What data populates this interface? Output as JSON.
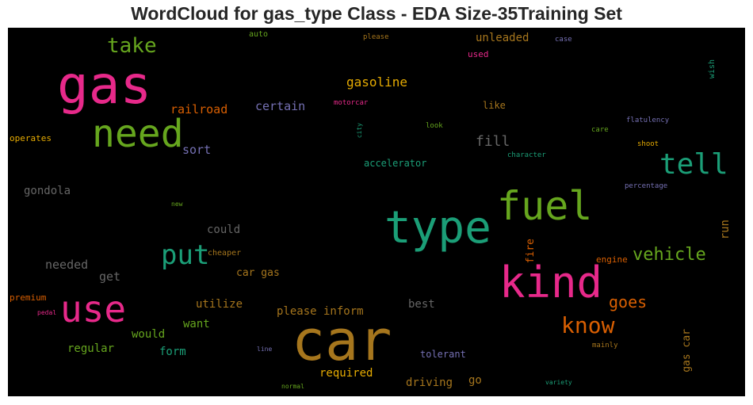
{
  "chart_data": {
    "type": "wordcloud",
    "title": "WordCloud for gas_type Class - EDA Size-35Training Set",
    "background": "#000000",
    "words": [
      {
        "text": "car",
        "size": 70,
        "color": "#a6761d"
      },
      {
        "text": "gas",
        "size": 66,
        "color": "#e7298a"
      },
      {
        "text": "type",
        "size": 56,
        "color": "#1b9e77"
      },
      {
        "text": "kind",
        "size": 54,
        "color": "#e7298a"
      },
      {
        "text": "fuel",
        "size": 50,
        "color": "#66a61e"
      },
      {
        "text": "need",
        "size": 48,
        "color": "#66a61e"
      },
      {
        "text": "use",
        "size": 46,
        "color": "#e7298a"
      },
      {
        "text": "tell",
        "size": 36,
        "color": "#1b9e77"
      },
      {
        "text": "put",
        "size": 34,
        "color": "#1b9e77"
      },
      {
        "text": "know",
        "size": 28,
        "color": "#d95f02"
      },
      {
        "text": "take",
        "size": 26,
        "color": "#66a61e"
      },
      {
        "text": "vehicle",
        "size": 22,
        "color": "#66a61e"
      },
      {
        "text": "goes",
        "size": 20,
        "color": "#d95f02"
      },
      {
        "text": "fill",
        "size": 18,
        "color": "#666666"
      },
      {
        "text": "gasoline",
        "size": 16,
        "color": "#e6ab02"
      },
      {
        "text": "railroad",
        "size": 15,
        "color": "#d95f02"
      },
      {
        "text": "certain",
        "size": 15,
        "color": "#7570b3"
      },
      {
        "text": "sort",
        "size": 15,
        "color": "#7570b3"
      },
      {
        "text": "needed",
        "size": 15,
        "color": "#666666"
      },
      {
        "text": "get",
        "size": 15,
        "color": "#666666"
      },
      {
        "text": "could",
        "size": 14,
        "color": "#666666"
      },
      {
        "text": "gondola",
        "size": 14,
        "color": "#666666"
      },
      {
        "text": "run",
        "size": 14,
        "color": "#a6761d"
      },
      {
        "text": "want",
        "size": 14,
        "color": "#66a61e"
      },
      {
        "text": "would",
        "size": 14,
        "color": "#66a61e"
      },
      {
        "text": "form",
        "size": 14,
        "color": "#1b9e77"
      },
      {
        "text": "regular",
        "size": 14,
        "color": "#66a61e"
      },
      {
        "text": "utilize",
        "size": 14,
        "color": "#a6761d"
      },
      {
        "text": "please inform",
        "size": 14,
        "color": "#a6761d"
      },
      {
        "text": "car gas",
        "size": 13,
        "color": "#a6761d"
      },
      {
        "text": "unleaded",
        "size": 14,
        "color": "#a6761d"
      },
      {
        "text": "best",
        "size": 14,
        "color": "#666666"
      },
      {
        "text": "required",
        "size": 14,
        "color": "#e6ab02"
      },
      {
        "text": "driving",
        "size": 14,
        "color": "#a6761d"
      },
      {
        "text": "go",
        "size": 14,
        "color": "#a6761d"
      },
      {
        "text": "fire",
        "size": 13,
        "color": "#d95f02"
      },
      {
        "text": "gas car",
        "size": 13,
        "color": "#a6761d"
      },
      {
        "text": "tolerant",
        "size": 12,
        "color": "#7570b3"
      },
      {
        "text": "like",
        "size": 12,
        "color": "#a6761d"
      },
      {
        "text": "accelerator",
        "size": 12,
        "color": "#1b9e77"
      },
      {
        "text": "operates",
        "size": 11,
        "color": "#e6ab02"
      },
      {
        "text": "premium",
        "size": 11,
        "color": "#d95f02"
      },
      {
        "text": "engine",
        "size": 11,
        "color": "#d95f02"
      },
      {
        "text": "cheaper",
        "size": 10,
        "color": "#a6761d"
      },
      {
        "text": "used",
        "size": 11,
        "color": "#e7298a"
      },
      {
        "text": "wish",
        "size": 10,
        "color": "#1b9e77"
      },
      {
        "text": "auto",
        "size": 10,
        "color": "#66a61e"
      },
      {
        "text": "shoot",
        "size": 9,
        "color": "#e6ab02"
      },
      {
        "text": "please",
        "size": 9,
        "color": "#a6761d"
      },
      {
        "text": "case",
        "size": 9,
        "color": "#7570b3"
      },
      {
        "text": "motorcar",
        "size": 9,
        "color": "#e7298a"
      },
      {
        "text": "flatulency",
        "size": 9,
        "color": "#7570b3"
      },
      {
        "text": "look",
        "size": 9,
        "color": "#66a61e"
      },
      {
        "text": "care",
        "size": 9,
        "color": "#66a61e"
      },
      {
        "text": "character",
        "size": 9,
        "color": "#1b9e77"
      },
      {
        "text": "percentage",
        "size": 9,
        "color": "#7570b3"
      },
      {
        "text": "city",
        "size": 8,
        "color": "#1b9e77"
      },
      {
        "text": "new",
        "size": 8,
        "color": "#66a61e"
      },
      {
        "text": "pedal",
        "size": 8,
        "color": "#e7298a"
      },
      {
        "text": "line",
        "size": 8,
        "color": "#7570b3"
      },
      {
        "text": "mainly",
        "size": 9,
        "color": "#a6761d"
      },
      {
        "text": "normal",
        "size": 8,
        "color": "#66a61e"
      },
      {
        "text": "variety",
        "size": 8,
        "color": "#1b9e77"
      }
    ]
  }
}
